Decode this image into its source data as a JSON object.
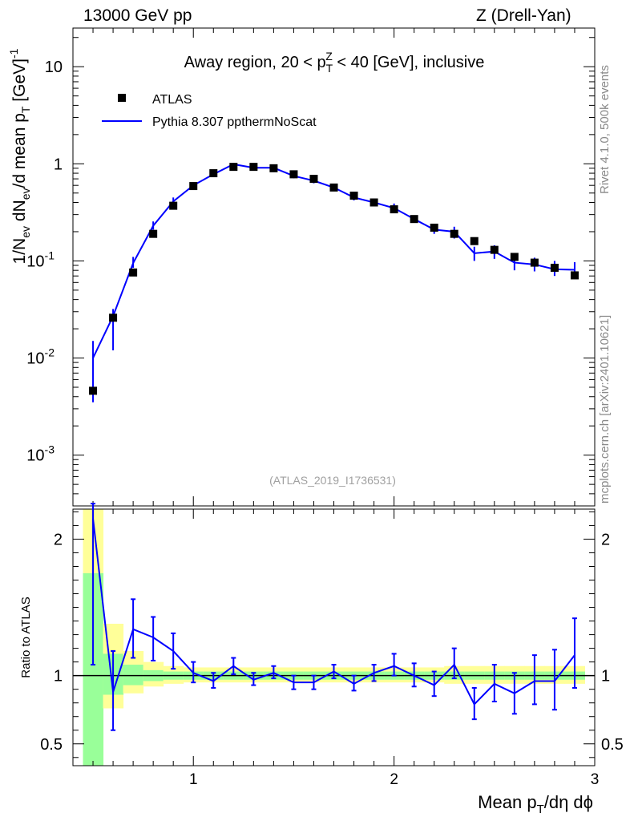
{
  "header": {
    "left": "13000 GeV pp",
    "right": "Z (Drell-Yan)"
  },
  "side_labels": {
    "rivet": "Rivet 4.1.0,  500k events",
    "site": "mcplots.cern.ch [arXiv:2401.10621]"
  },
  "chart_data": {
    "type": "line",
    "title": "Away region, 20 < p_T^Z < 40 [GeV], inclusive",
    "analysis_id": "(ATLAS_2019_I1736531)",
    "xlabel": "Mean p_T/dη dϕ",
    "ylabel": "1/N_ev dN_ev/d mean p_T [GeV]^-1",
    "ratio_ylabel": "Ratio to ATLAS",
    "xlim": [
      0.4,
      3.0
    ],
    "ylim": [
      0.0003,
      25
    ],
    "yscale": "log",
    "ratio_ylim": [
      0.34,
      2.22
    ],
    "x_ticks": [
      "1",
      "2",
      "3"
    ],
    "y_ticks": [
      "10",
      "1",
      "10^-1",
      "10^-2",
      "10^-3"
    ],
    "ratio_ticks": [
      "2",
      "1",
      "0.5"
    ],
    "legend": [
      "ATLAS",
      "Pythia 8.307 ppthermNoScat"
    ],
    "x": [
      0.5,
      0.6,
      0.7,
      0.8,
      0.9,
      1.0,
      1.1,
      1.2,
      1.3,
      1.4,
      1.5,
      1.6,
      1.7,
      1.8,
      1.9,
      2.0,
      2.1,
      2.2,
      2.3,
      2.4,
      2.5,
      2.6,
      2.7,
      2.8,
      2.9
    ],
    "series": [
      {
        "name": "ATLAS",
        "style": "markers",
        "values": [
          0.0046,
          0.026,
          0.076,
          0.19,
          0.37,
          0.59,
          0.8,
          0.93,
          0.93,
          0.9,
          0.78,
          0.7,
          0.57,
          0.47,
          0.4,
          0.34,
          0.27,
          0.22,
          0.19,
          0.16,
          0.13,
          0.11,
          0.096,
          0.085,
          0.071
        ]
      },
      {
        "name": "Pythia 8.307 ppthermNoScat",
        "style": "line",
        "values": [
          0.01,
          0.027,
          0.095,
          0.23,
          0.41,
          0.6,
          0.78,
          0.99,
          0.91,
          0.91,
          0.75,
          0.67,
          0.57,
          0.45,
          0.4,
          0.35,
          0.27,
          0.21,
          0.2,
          0.12,
          0.125,
          0.096,
          0.092,
          0.082,
          0.081
        ],
        "err_low": [
          0.0035,
          0.012,
          0.085,
          0.21,
          0.375,
          0.58,
          0.76,
          0.96,
          0.89,
          0.89,
          0.71,
          0.63,
          0.54,
          0.42,
          0.37,
          0.32,
          0.25,
          0.19,
          0.17,
          0.1,
          0.105,
          0.08,
          0.078,
          0.07,
          0.065
        ],
        "err_high": [
          0.015,
          0.032,
          0.11,
          0.255,
          0.45,
          0.63,
          0.82,
          1.02,
          0.95,
          0.94,
          0.8,
          0.72,
          0.6,
          0.49,
          0.44,
          0.39,
          0.29,
          0.23,
          0.225,
          0.14,
          0.145,
          0.115,
          0.108,
          0.1,
          0.097
        ]
      }
    ],
    "ratio": {
      "values": [
        2.15,
        0.88,
        1.34,
        1.28,
        1.18,
        1.02,
        0.96,
        1.07,
        0.97,
        1.02,
        0.95,
        0.95,
        1.03,
        0.94,
        1.02,
        1.07,
        1.0,
        0.93,
        1.08,
        0.79,
        0.94,
        0.87,
        0.96,
        0.96,
        1.15
      ],
      "err_low": [
        1.08,
        0.6,
        1.13,
        1.11,
        1.05,
        0.95,
        0.91,
        1.01,
        0.93,
        0.98,
        0.9,
        0.9,
        0.98,
        0.89,
        0.96,
        1.0,
        0.92,
        0.85,
        0.98,
        0.68,
        0.81,
        0.72,
        0.79,
        0.75,
        0.91
      ],
      "err_high": [
        2.26,
        1.18,
        1.56,
        1.43,
        1.31,
        1.1,
        1.02,
        1.13,
        1.02,
        1.07,
        1.0,
        1.0,
        1.08,
        1.0,
        1.08,
        1.16,
        1.09,
        1.03,
        1.2,
        0.91,
        1.08,
        1.02,
        1.15,
        1.19,
        1.42
      ],
      "band_yellow": [
        [
          0.34,
          2.22
        ],
        [
          0.76,
          1.38
        ],
        [
          0.87,
          1.18
        ],
        [
          0.92,
          1.1
        ],
        [
          0.94,
          1.07
        ],
        [
          0.95,
          1.06
        ],
        [
          0.95,
          1.06
        ],
        [
          0.95,
          1.06
        ],
        [
          0.95,
          1.06
        ],
        [
          0.95,
          1.06
        ],
        [
          0.95,
          1.06
        ],
        [
          0.95,
          1.06
        ],
        [
          0.95,
          1.06
        ],
        [
          0.95,
          1.06
        ],
        [
          0.95,
          1.06
        ],
        [
          0.95,
          1.06
        ],
        [
          0.95,
          1.06
        ],
        [
          0.95,
          1.06
        ],
        [
          0.94,
          1.07
        ],
        [
          0.94,
          1.07
        ],
        [
          0.94,
          1.07
        ],
        [
          0.94,
          1.07
        ],
        [
          0.94,
          1.07
        ],
        [
          0.94,
          1.07
        ],
        [
          0.94,
          1.07
        ]
      ],
      "band_green": [
        [
          0.34,
          1.75
        ],
        [
          0.86,
          1.16
        ],
        [
          0.93,
          1.08
        ],
        [
          0.96,
          1.04
        ],
        [
          0.97,
          1.03
        ],
        [
          0.97,
          1.03
        ],
        [
          0.97,
          1.03
        ],
        [
          0.97,
          1.03
        ],
        [
          0.97,
          1.03
        ],
        [
          0.97,
          1.03
        ],
        [
          0.97,
          1.03
        ],
        [
          0.97,
          1.03
        ],
        [
          0.97,
          1.03
        ],
        [
          0.97,
          1.03
        ],
        [
          0.97,
          1.03
        ],
        [
          0.97,
          1.03
        ],
        [
          0.97,
          1.03
        ],
        [
          0.97,
          1.03
        ],
        [
          0.97,
          1.03
        ],
        [
          0.97,
          1.03
        ],
        [
          0.97,
          1.03
        ],
        [
          0.97,
          1.03
        ],
        [
          0.97,
          1.03
        ],
        [
          0.97,
          1.03
        ],
        [
          0.97,
          1.03
        ]
      ]
    },
    "colors": {
      "mc": "#0000ff",
      "data": "#000000",
      "band_yellow": "#ffff99",
      "band_green": "#99ff99"
    }
  }
}
